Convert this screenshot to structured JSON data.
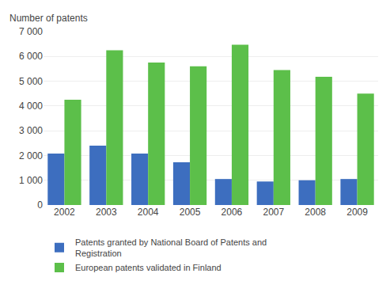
{
  "chart_data": {
    "type": "bar",
    "ylabel": "Number of patents",
    "categories": [
      "2002",
      "2003",
      "2004",
      "2005",
      "2006",
      "2007",
      "2008",
      "2009"
    ],
    "series": [
      {
        "name": "Patents granted by National Board of Patents and\nRegistration",
        "color": "#3D6EBF",
        "values": [
          2075,
          2400,
          2075,
          1725,
          1050,
          950,
          1000,
          1050
        ]
      },
      {
        "name": "European patents validated in Finland",
        "color": "#5CBF4A",
        "values": [
          4250,
          6250,
          5750,
          5600,
          6475,
          5450,
          5175,
          4500
        ]
      }
    ],
    "ylim": [
      0,
      7000
    ],
    "yticks": [
      0,
      {
        "value": 1000,
        "label": "1 000"
      },
      {
        "value": 2000,
        "label": "2 000"
      },
      {
        "value": 3000,
        "label": "3 000"
      },
      {
        "value": 4000,
        "label": "4 000"
      },
      {
        "value": 5000,
        "label": "5 000"
      },
      {
        "value": 6000,
        "label": "6 000"
      },
      {
        "value": 7000,
        "label": "7 000"
      }
    ],
    "grid": true,
    "legend": "bottom"
  }
}
